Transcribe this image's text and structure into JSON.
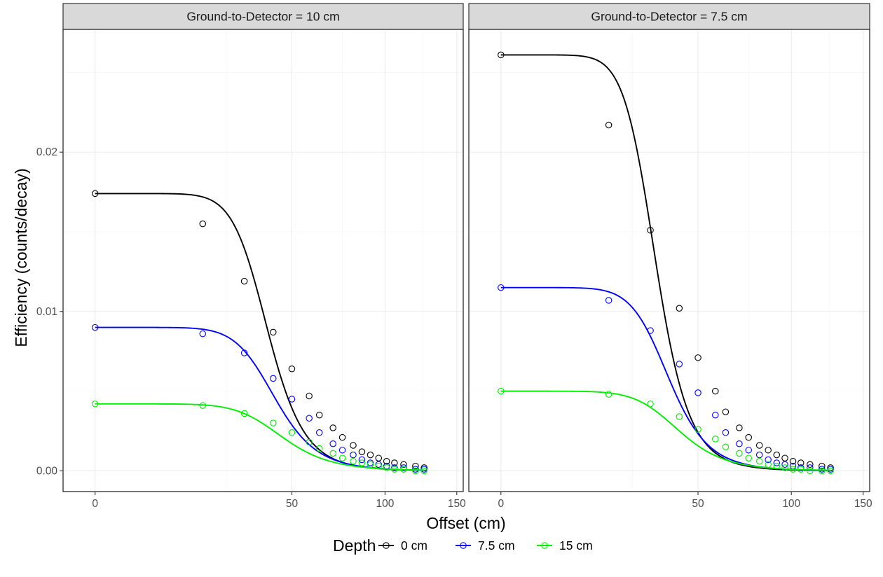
{
  "chart_data": {
    "type": "scatter",
    "xlabel": "Offset (cm)",
    "ylabel": "Efficiency (counts/decay)",
    "x_scale": "sqrt",
    "xlim": [
      -1,
      155
    ],
    "ylim": [
      -0.0013,
      0.0277
    ],
    "x_ticks": [
      0,
      50,
      100,
      150
    ],
    "x_tick_labels": [
      "0",
      "50",
      "100",
      "150"
    ],
    "y_ticks": [
      0,
      0.01,
      0.02
    ],
    "y_tick_labels": [
      "0.00",
      "0.01",
      "0.02"
    ],
    "grid": true,
    "legend": {
      "title": "Depth",
      "position": "bottom",
      "entries": [
        "0 cm",
        "7.5 cm",
        "15 cm"
      ]
    },
    "series_colors": {
      "0 cm": "#000000",
      "7.5 cm": "#0000ff",
      "15 cm": "#00ee00"
    },
    "x_points": [
      0,
      18,
      31,
      42,
      50,
      58,
      63,
      70,
      75,
      81,
      86,
      91,
      96,
      101,
      106,
      112,
      120,
      126
    ],
    "panels": [
      {
        "title": "Ground-to-Detector = 10 cm",
        "series": [
          {
            "name": "0 cm",
            "points": [
              0.0174,
              0.0155,
              0.0119,
              0.0087,
              0.0064,
              0.0047,
              0.0035,
              0.0027,
              0.0021,
              0.0016,
              0.0012,
              0.001,
              0.0008,
              0.0006,
              0.0005,
              0.0004,
              0.0003,
              0.0002
            ],
            "fit_y0": 0.0174,
            "fit_x50": 40,
            "fit_k": 5.5
          },
          {
            "name": "7.5 cm",
            "points": [
              0.009,
              0.0086,
              0.0074,
              0.0058,
              0.0045,
              0.0033,
              0.0024,
              0.0017,
              0.0013,
              0.001,
              0.0007,
              0.0005,
              0.0004,
              0.0003,
              0.0002,
              0.0002,
              0.0001,
              0.0001
            ],
            "fit_y0": 0.009,
            "fit_x50": 43,
            "fit_k": 5.0
          },
          {
            "name": "15 cm",
            "points": [
              0.0042,
              0.0041,
              0.0036,
              0.003,
              0.0024,
              0.0018,
              0.0014,
              0.0011,
              0.0008,
              0.0006,
              0.0005,
              0.0004,
              0.0003,
              0.0002,
              0.0001,
              0.0001,
              0.0,
              0.0
            ],
            "fit_y0": 0.0042,
            "fit_x50": 46,
            "fit_k": 4.5
          }
        ]
      },
      {
        "title": "Ground-to-Detector = 7.5 cm",
        "series": [
          {
            "name": "0 cm",
            "points": [
              0.0261,
              0.0217,
              0.0151,
              0.0102,
              0.0071,
              0.005,
              0.0037,
              0.0027,
              0.0021,
              0.0016,
              0.0013,
              0.001,
              0.0008,
              0.0006,
              0.0005,
              0.0004,
              0.0003,
              0.0002
            ],
            "fit_y0": 0.0261,
            "fit_x50": 33,
            "fit_k": 5.5
          },
          {
            "name": "7.5 cm",
            "points": [
              0.0115,
              0.0107,
              0.0088,
              0.0067,
              0.0049,
              0.0035,
              0.0024,
              0.0017,
              0.0013,
              0.001,
              0.0007,
              0.0005,
              0.0004,
              0.0003,
              0.0002,
              0.0002,
              0.0001,
              0.0001
            ],
            "fit_y0": 0.0115,
            "fit_x50": 38,
            "fit_k": 5.0
          },
          {
            "name": "15 cm",
            "points": [
              0.005,
              0.0048,
              0.0042,
              0.0034,
              0.0026,
              0.002,
              0.0015,
              0.0011,
              0.0008,
              0.0006,
              0.0004,
              0.0003,
              0.0002,
              0.0001,
              0.0001,
              0.0,
              0.0,
              0.0
            ],
            "fit_y0": 0.005,
            "fit_x50": 42,
            "fit_k": 4.5
          }
        ]
      }
    ]
  }
}
